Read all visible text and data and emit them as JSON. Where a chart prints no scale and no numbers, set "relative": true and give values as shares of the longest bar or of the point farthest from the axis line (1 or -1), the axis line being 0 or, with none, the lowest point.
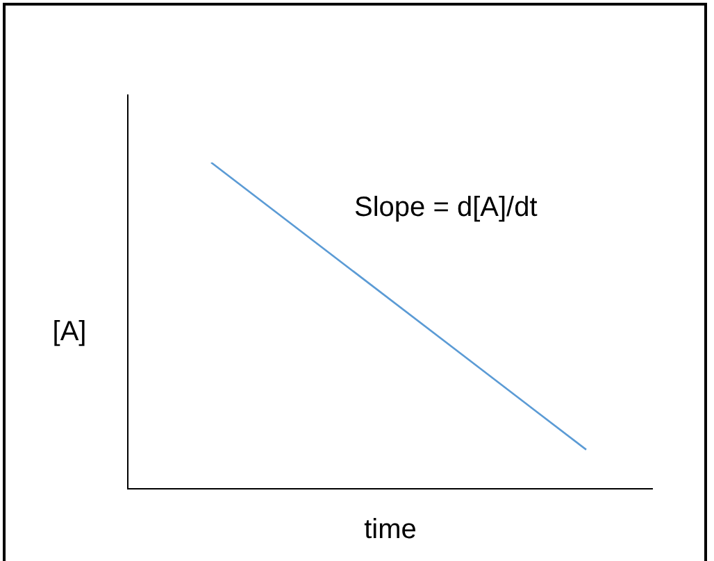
{
  "chart_data": {
    "type": "line",
    "relative": true,
    "categories": [
      null,
      null
    ],
    "series": [
      {
        "color": "#5b9bd5",
        "values": [
          1,
          0.12
        ]
      }
    ],
    "xlabel": "time",
    "ylabel": "[A]",
    "annotations": [
      "Slope = d[A]/dt"
    ],
    "marker": "none",
    "line_style": "solid"
  }
}
